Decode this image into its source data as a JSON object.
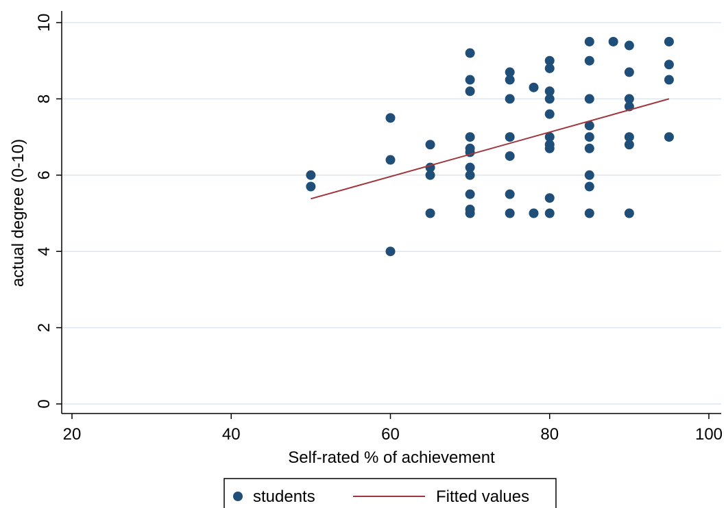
{
  "chart_data": {
    "type": "scatter",
    "title": "",
    "xlabel": "Self-rated % of achievement",
    "ylabel": "actual degree (0-10)",
    "xlim": [
      20,
      100
    ],
    "ylim": [
      0,
      10
    ],
    "xticks": [
      20,
      40,
      60,
      80,
      100
    ],
    "yticks": [
      0,
      2,
      4,
      6,
      8,
      10
    ],
    "grid": true,
    "legend_position": "bottom",
    "colors": {
      "points": "#1f4e79",
      "fit": "#a0363c",
      "grid": "#dde6ee",
      "axis": "#000000"
    },
    "series": [
      {
        "name": "students",
        "kind": "scatter",
        "points": [
          [
            50,
            6.0
          ],
          [
            50,
            5.7
          ],
          [
            60,
            7.5
          ],
          [
            60,
            6.4
          ],
          [
            60,
            4.0
          ],
          [
            65,
            6.8
          ],
          [
            65,
            6.2
          ],
          [
            65,
            6.0
          ],
          [
            65,
            5.0
          ],
          [
            70,
            9.2
          ],
          [
            70,
            8.5
          ],
          [
            70,
            8.2
          ],
          [
            70,
            7.0
          ],
          [
            70,
            6.7
          ],
          [
            70,
            6.6
          ],
          [
            70,
            6.2
          ],
          [
            70,
            6.0
          ],
          [
            70,
            5.5
          ],
          [
            70,
            5.1
          ],
          [
            70,
            5.0
          ],
          [
            75,
            8.7
          ],
          [
            75,
            8.5
          ],
          [
            75,
            8.0
          ],
          [
            75,
            7.0
          ],
          [
            75,
            6.5
          ],
          [
            75,
            5.5
          ],
          [
            75,
            5.0
          ],
          [
            78,
            8.3
          ],
          [
            78,
            5.0
          ],
          [
            80,
            9.0
          ],
          [
            80,
            8.8
          ],
          [
            80,
            8.2
          ],
          [
            80,
            8.0
          ],
          [
            80,
            7.6
          ],
          [
            80,
            7.0
          ],
          [
            80,
            6.8
          ],
          [
            80,
            6.7
          ],
          [
            80,
            5.4
          ],
          [
            80,
            5.0
          ],
          [
            85,
            9.5
          ],
          [
            85,
            9.0
          ],
          [
            85,
            8.0
          ],
          [
            85,
            7.3
          ],
          [
            85,
            7.0
          ],
          [
            85,
            6.7
          ],
          [
            85,
            6.0
          ],
          [
            85,
            5.7
          ],
          [
            85,
            5.0
          ],
          [
            88,
            9.5
          ],
          [
            90,
            9.4
          ],
          [
            90,
            8.7
          ],
          [
            90,
            8.0
          ],
          [
            90,
            7.8
          ],
          [
            90,
            7.0
          ],
          [
            90,
            6.8
          ],
          [
            90,
            5.0
          ],
          [
            95,
            9.5
          ],
          [
            95,
            8.9
          ],
          [
            95,
            8.5
          ],
          [
            95,
            7.0
          ]
        ]
      },
      {
        "name": "Fitted values",
        "kind": "line",
        "points": [
          [
            50,
            5.38
          ],
          [
            95,
            8.0
          ]
        ]
      }
    ]
  }
}
